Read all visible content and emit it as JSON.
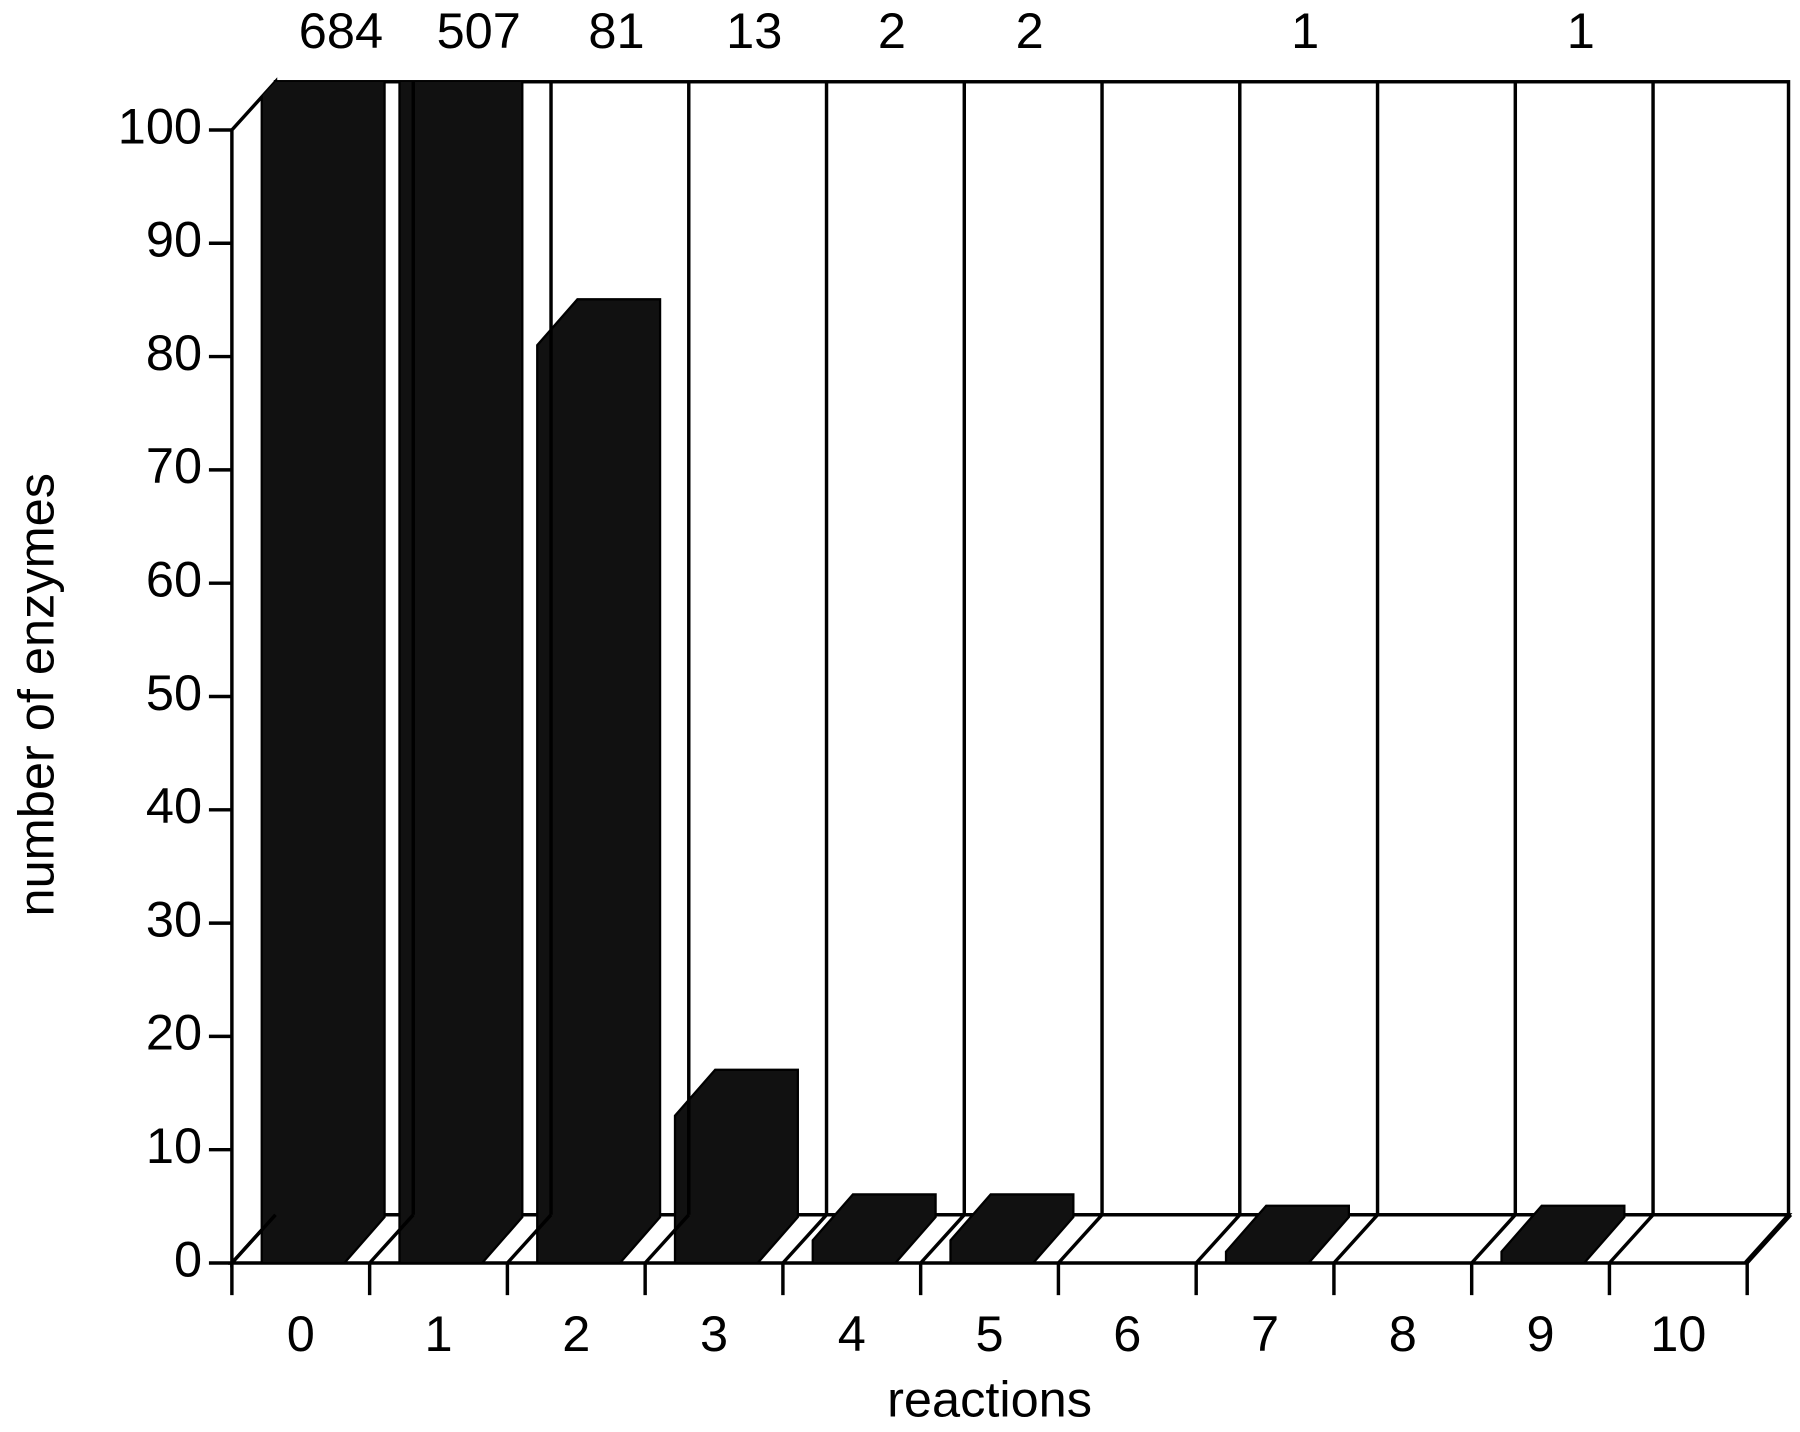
{
  "chart_data": {
    "type": "bar3d",
    "x_label": "reactions",
    "y_label": "number of enzymes",
    "categories": [
      "0",
      "1",
      "2",
      "3",
      "4",
      "5",
      "6",
      "7",
      "8",
      "9",
      "10"
    ],
    "values": [
      684,
      507,
      81,
      13,
      2,
      2,
      0,
      1,
      0,
      1,
      0
    ],
    "value_labels": [
      "684",
      "507",
      "81",
      "13",
      "2",
      "2",
      null,
      "1",
      null,
      "1",
      null
    ],
    "color": "#111111",
    "ylim": [
      0,
      100
    ],
    "yticks": [
      0,
      10,
      20,
      30,
      40,
      50,
      60,
      70,
      80,
      90,
      100
    ]
  }
}
